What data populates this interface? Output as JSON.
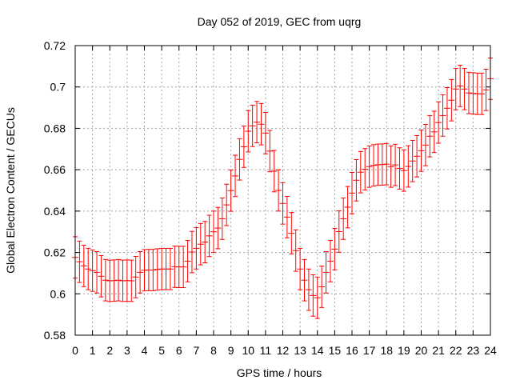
{
  "chart_data": {
    "type": "scatter",
    "title": "Day 052 of 2019, GEC from uqrg",
    "xlabel": "GPS time / hours",
    "ylabel": "Global Electron Content / GECUs",
    "xlim": [
      0,
      24
    ],
    "ylim": [
      0.58,
      0.72
    ],
    "grid": true,
    "x_ticks": [
      "0",
      "1",
      "2",
      "3",
      "4",
      "5",
      "6",
      "7",
      "8",
      "9",
      "10",
      "11",
      "12",
      "13",
      "14",
      "15",
      "16",
      "17",
      "18",
      "19",
      "20",
      "21",
      "22",
      "23",
      "24"
    ],
    "y_ticks": [
      "0.58",
      "0.6",
      "0.62",
      "0.64",
      "0.66",
      "0.68",
      "0.7",
      "0.72"
    ],
    "x_step": 0.25,
    "error_halfwidth": 0.01,
    "series": [
      {
        "name": "GEC",
        "color": "#ff0000",
        "values": [
          0.6176,
          0.6155,
          0.6135,
          0.612,
          0.6112,
          0.6104,
          0.6085,
          0.6066,
          0.6063,
          0.6064,
          0.6066,
          0.6063,
          0.6064,
          0.6063,
          0.6081,
          0.6104,
          0.6114,
          0.6115,
          0.6115,
          0.6118,
          0.612,
          0.612,
          0.612,
          0.6131,
          0.613,
          0.613,
          0.6158,
          0.6202,
          0.622,
          0.624,
          0.625,
          0.628,
          0.63,
          0.6318,
          0.6363,
          0.643,
          0.6499,
          0.657,
          0.665,
          0.6711,
          0.6786,
          0.6812,
          0.683,
          0.682,
          0.6777,
          0.669,
          0.6593,
          0.65,
          0.6437,
          0.6371,
          0.6293,
          0.6209,
          0.612,
          0.6066,
          0.602,
          0.5992,
          0.5981,
          0.6034,
          0.6104,
          0.6158,
          0.6216,
          0.6301,
          0.6363,
          0.6419,
          0.6487,
          0.6549,
          0.6588,
          0.6602,
          0.6615,
          0.6621,
          0.6624,
          0.6625,
          0.6627,
          0.6615,
          0.6623,
          0.6606,
          0.6596,
          0.6616,
          0.6642,
          0.6665,
          0.6692,
          0.6719,
          0.6762,
          0.6783,
          0.6828,
          0.6862,
          0.6897,
          0.6936,
          0.699,
          0.7005,
          0.699,
          0.6971,
          0.6969,
          0.6967,
          0.6967,
          0.6986,
          0.704
        ]
      }
    ]
  }
}
